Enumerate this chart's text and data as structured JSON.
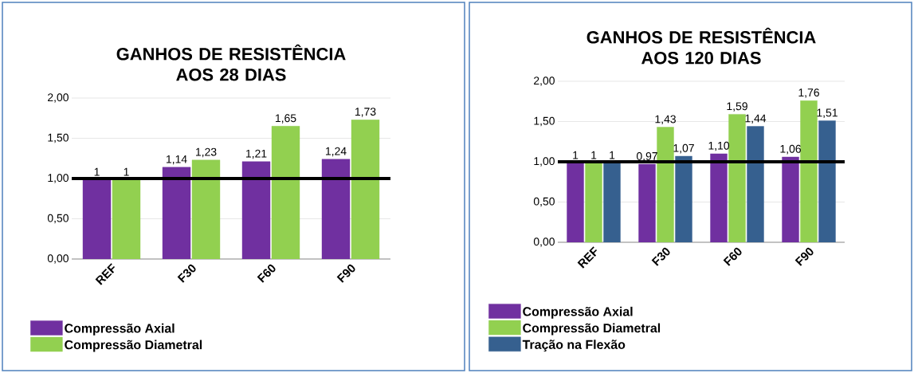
{
  "chart_data": [
    {
      "type": "bar",
      "title": "GANHOS DE RESISTÊNCIA AOS 28 DIAS",
      "categories": [
        "REF",
        "F30",
        "F60",
        "F90"
      ],
      "series": [
        {
          "name": "Compressão Axial",
          "color": "#7030a0",
          "values": [
            1,
            1.14,
            1.21,
            1.24
          ],
          "value_labels": [
            "1",
            "1,14",
            "1,21",
            "1,24"
          ]
        },
        {
          "name": "Compressão Diametral",
          "color": "#92d050",
          "values": [
            1,
            1.23,
            1.65,
            1.73
          ],
          "value_labels": [
            "1",
            "1,23",
            "1,65",
            "1,73"
          ]
        }
      ],
      "ylim": [
        0,
        2
      ],
      "yticks": [
        {
          "value": 0,
          "label": "0,00"
        },
        {
          "value": 0.5,
          "label": "0,50"
        },
        {
          "value": 1,
          "label": "1,00"
        },
        {
          "value": 1.5,
          "label": "1,50"
        },
        {
          "value": 2,
          "label": "2,00"
        }
      ],
      "grid": "y",
      "legend": "bottom",
      "ref_lines": [
        {
          "axis": "y",
          "value": 1,
          "color": "#000000"
        }
      ]
    },
    {
      "type": "bar",
      "title": "GANHOS DE RESISTÊNCIA AOS 120 DIAS",
      "categories": [
        "REF",
        "F30",
        "F60",
        "F90"
      ],
      "series": [
        {
          "name": "Compressão Axial",
          "color": "#7030a0",
          "values": [
            1,
            0.97,
            1.1,
            1.06
          ],
          "value_labels": [
            "1",
            "0,97",
            "1,10",
            "1,06"
          ]
        },
        {
          "name": "Compressão Diametral",
          "color": "#92d050",
          "values": [
            1,
            1.43,
            1.59,
            1.76
          ],
          "value_labels": [
            "1",
            "1,43",
            "1,59",
            "1,76"
          ]
        },
        {
          "name": "Tração na Flexão",
          "color": "#36608f",
          "values": [
            1,
            1.07,
            1.44,
            1.51
          ],
          "value_labels": [
            "1",
            "1,07",
            "1,44",
            "1,51"
          ]
        }
      ],
      "ylim": [
        0,
        2
      ],
      "yticks": [
        {
          "value": 0,
          "label": "0,00"
        },
        {
          "value": 0.5,
          "label": "0,50"
        },
        {
          "value": 1,
          "label": "1,00"
        },
        {
          "value": 1.5,
          "label": "1,50"
        },
        {
          "value": 2,
          "label": "2,00"
        }
      ],
      "grid": "y",
      "legend": "bottom",
      "ref_lines": [
        {
          "axis": "y",
          "value": 1,
          "color": "#000000"
        }
      ]
    }
  ]
}
